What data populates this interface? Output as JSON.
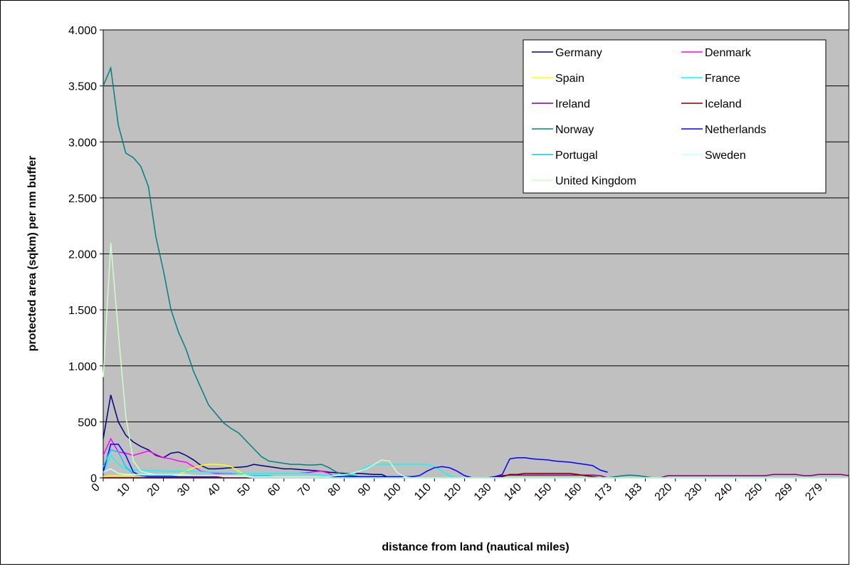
{
  "chart_data": {
    "type": "line",
    "x_label": "distance from land (nautical miles)",
    "y_label": "protected area (sqkm) per nm buffer",
    "categories": [
      "0",
      null,
      null,
      null,
      "10",
      null,
      null,
      null,
      "20",
      null,
      null,
      null,
      "30",
      null,
      null,
      null,
      "40",
      null,
      null,
      null,
      "50",
      null,
      null,
      null,
      "60",
      null,
      null,
      null,
      "70",
      null,
      null,
      null,
      "80",
      null,
      null,
      null,
      "90",
      null,
      null,
      null,
      "100",
      null,
      null,
      null,
      "110",
      null,
      null,
      null,
      "120",
      null,
      null,
      null,
      "130",
      null,
      null,
      null,
      "140",
      null,
      null,
      null,
      "150",
      null,
      null,
      null,
      "160",
      null,
      null,
      null,
      "173",
      null,
      null,
      null,
      "183",
      null,
      null,
      null,
      "220",
      null,
      null,
      null,
      "230",
      null,
      null,
      null,
      "240",
      null,
      null,
      null,
      "250",
      null,
      null,
      null,
      "269",
      null,
      null,
      null,
      "279",
      null,
      null,
      null
    ],
    "ylim": [
      0,
      4000
    ],
    "yticks": [
      0,
      500,
      {
        "value": 1000,
        "label": "1.000"
      },
      {
        "value": 1500,
        "label": "1.500"
      },
      {
        "value": 2000,
        "label": "2.000"
      },
      {
        "value": 2500,
        "label": "2.500"
      },
      {
        "value": 3000,
        "label": "3.000"
      },
      {
        "value": 3500,
        "label": "3.500"
      },
      {
        "value": 4000,
        "label": "4.000"
      }
    ],
    "grid": true,
    "legend_position": "upper right",
    "series": [
      {
        "name": "Germany",
        "color": "#000080",
        "values": [
          350,
          740,
          500,
          380,
          320,
          280,
          250,
          200,
          180,
          220,
          230,
          200,
          160,
          110,
          80,
          80,
          85,
          90,
          95,
          100,
          120,
          110,
          100,
          90,
          80,
          80,
          75,
          70,
          65,
          60,
          50,
          45,
          40,
          40,
          40,
          35,
          30,
          30,
          0,
          0,
          0,
          0,
          0,
          0,
          0,
          0,
          0,
          0,
          0,
          0,
          0,
          0,
          0,
          0,
          0,
          0,
          0,
          0,
          0,
          0,
          0,
          0,
          0,
          0,
          0,
          0,
          0,
          0,
          0,
          0,
          0,
          0,
          0,
          0,
          0,
          0,
          0,
          0,
          0,
          0,
          0,
          0,
          0,
          0,
          0,
          0,
          0,
          0,
          0,
          0,
          0,
          0,
          0,
          0,
          0,
          0,
          0,
          0,
          0,
          0
        ]
      },
      {
        "name": "Denmark",
        "color": "#ff00ff",
        "values": [
          200,
          350,
          230,
          220,
          200,
          220,
          240,
          210,
          180,
          170,
          150,
          140,
          100,
          60,
          50,
          40,
          40,
          40,
          40,
          40,
          40,
          40,
          40,
          40,
          40,
          40,
          40,
          45,
          55,
          60,
          40,
          0,
          0,
          0,
          0,
          0,
          0,
          0,
          0,
          0,
          0,
          0,
          0,
          0,
          0,
          0,
          0,
          0,
          0,
          0,
          0,
          0,
          0,
          0,
          0,
          0,
          0,
          0,
          0,
          0,
          0,
          0,
          0,
          0,
          0,
          0,
          0,
          0,
          0,
          0,
          0,
          0,
          0,
          0,
          0,
          0,
          0,
          0,
          0,
          0,
          0,
          0,
          0,
          0,
          0,
          0,
          0,
          0,
          0,
          0,
          0,
          0,
          0,
          0,
          0,
          0,
          0,
          0,
          0,
          0
        ]
      },
      {
        "name": "Spain",
        "color": "#ffff00",
        "values": [
          10,
          20,
          20,
          20,
          20,
          20,
          20,
          20,
          20,
          20,
          30,
          60,
          90,
          110,
          120,
          120,
          115,
          100,
          60,
          20,
          0,
          0,
          0,
          0,
          0,
          0,
          0,
          0,
          0,
          0,
          0,
          0,
          0,
          0,
          0,
          0,
          0,
          0,
          0,
          0,
          0,
          0,
          0,
          0,
          0,
          0,
          0,
          0,
          0,
          0,
          0,
          0,
          0,
          0,
          0,
          0,
          0,
          0,
          0,
          0,
          0,
          0,
          0,
          0,
          0,
          0,
          0,
          0,
          0,
          0,
          0,
          0,
          0,
          0,
          0,
          0,
          0,
          0,
          0,
          0,
          0,
          0,
          0,
          0,
          0,
          0,
          0,
          0,
          0,
          0,
          0,
          0,
          0,
          0,
          0,
          0,
          0,
          0,
          0,
          0
        ]
      },
      {
        "name": "France",
        "color": "#00ffff",
        "values": [
          50,
          200,
          120,
          80,
          70,
          70,
          65,
          65,
          60,
          60,
          60,
          60,
          60,
          55,
          50,
          50,
          45,
          45,
          40,
          40,
          40,
          40,
          40,
          40,
          40,
          40,
          40,
          40,
          30,
          20,
          20,
          20,
          20,
          30,
          60,
          100,
          120,
          120,
          120,
          120,
          120,
          120,
          120,
          120,
          100,
          60,
          20,
          0,
          0,
          0,
          0,
          0,
          0,
          0,
          0,
          0,
          0,
          0,
          0,
          0,
          0,
          0,
          0,
          0,
          0,
          0,
          0,
          0,
          0,
          0,
          0,
          0,
          0,
          0,
          0,
          0,
          0,
          0,
          0,
          0,
          0,
          0,
          0,
          0,
          0,
          0,
          0,
          0,
          0,
          0,
          0,
          0,
          0,
          0,
          0,
          0,
          0,
          0,
          0,
          0
        ]
      },
      {
        "name": "Ireland",
        "color": "#800080",
        "values": [
          0,
          0,
          0,
          0,
          0,
          0,
          0,
          0,
          0,
          0,
          0,
          0,
          0,
          0,
          0,
          0,
          0,
          0,
          0,
          0,
          0,
          0,
          0,
          0,
          0,
          0,
          0,
          0,
          0,
          0,
          0,
          0,
          0,
          0,
          0,
          0,
          0,
          0,
          0,
          0,
          0,
          0,
          0,
          0,
          0,
          0,
          0,
          0,
          0,
          0,
          0,
          0,
          0,
          20,
          25,
          25,
          25,
          25,
          25,
          25,
          25,
          25,
          25,
          25,
          25,
          25,
          20,
          0,
          0,
          0,
          0,
          0,
          0,
          0,
          0,
          20,
          20,
          20,
          20,
          20,
          20,
          20,
          20,
          20,
          20,
          20,
          20,
          20,
          20,
          30,
          30,
          30,
          30,
          20,
          20,
          30,
          30,
          30,
          30,
          20
        ]
      },
      {
        "name": "Iceland",
        "color": "#800000",
        "values": [
          0,
          0,
          0,
          0,
          0,
          0,
          0,
          0,
          0,
          0,
          0,
          0,
          0,
          0,
          0,
          0,
          0,
          0,
          0,
          0,
          0,
          0,
          0,
          0,
          0,
          0,
          0,
          0,
          0,
          0,
          0,
          0,
          0,
          0,
          0,
          0,
          0,
          0,
          0,
          0,
          0,
          0,
          0,
          0,
          0,
          0,
          0,
          0,
          0,
          0,
          0,
          0,
          0,
          10,
          30,
          30,
          40,
          40,
          40,
          40,
          40,
          40,
          40,
          30,
          20,
          10,
          0,
          0,
          0,
          0,
          0,
          0,
          0,
          0,
          0,
          0,
          0,
          0,
          0,
          0,
          0,
          0,
          0,
          0,
          0,
          0,
          0,
          0,
          0,
          0,
          0,
          0,
          0,
          0,
          0,
          0,
          0,
          0,
          0,
          0
        ]
      },
      {
        "name": "Norway",
        "color": "#008080",
        "values": [
          3500,
          3660,
          3150,
          2900,
          2860,
          2780,
          2600,
          2150,
          1850,
          1500,
          1300,
          1150,
          950,
          800,
          650,
          570,
          490,
          440,
          400,
          330,
          260,
          190,
          150,
          140,
          130,
          120,
          120,
          115,
          115,
          120,
          90,
          50,
          30,
          20,
          10,
          0,
          0,
          0,
          0,
          0,
          0,
          0,
          0,
          0,
          0,
          0,
          0,
          0,
          0,
          0,
          0,
          0,
          0,
          0,
          0,
          0,
          0,
          0,
          0,
          0,
          0,
          0,
          0,
          0,
          0,
          0,
          0,
          0,
          10,
          20,
          25,
          20,
          10,
          0,
          0,
          0,
          0,
          0,
          0,
          0,
          0,
          0,
          0,
          0,
          0,
          0,
          0,
          0,
          0,
          0,
          0,
          0,
          0,
          0,
          0,
          0,
          0,
          0,
          0,
          0
        ]
      },
      {
        "name": "Netherlands",
        "color": "#0000ff",
        "values": [
          50,
          300,
          300,
          200,
          50,
          20,
          10,
          10,
          10,
          10,
          10,
          10,
          10,
          10,
          10,
          10,
          10,
          10,
          10,
          10,
          10,
          10,
          10,
          10,
          10,
          10,
          10,
          10,
          10,
          10,
          10,
          10,
          10,
          10,
          10,
          10,
          10,
          10,
          10,
          10,
          10,
          10,
          20,
          60,
          90,
          100,
          90,
          60,
          20,
          0,
          0,
          0,
          10,
          30,
          170,
          180,
          180,
          170,
          165,
          160,
          150,
          145,
          140,
          130,
          120,
          110,
          70,
          50,
          null,
          null,
          null,
          null,
          null,
          null,
          null,
          null,
          null,
          null,
          null,
          null,
          null,
          null,
          null,
          null,
          null,
          null,
          null,
          null,
          null,
          null,
          null,
          null,
          null,
          null,
          null,
          null,
          null,
          null,
          null,
          null
        ]
      },
      {
        "name": "Portugal",
        "color": "#00ccff",
        "values": [
          100,
          250,
          230,
          100,
          30,
          20,
          20,
          20,
          20,
          20,
          20,
          20,
          20,
          20,
          20,
          20,
          20,
          20,
          20,
          20,
          20,
          20,
          20,
          10,
          10,
          10,
          10,
          10,
          10,
          10,
          0,
          0,
          0,
          0,
          0,
          0,
          0,
          0,
          0,
          0,
          0,
          0,
          0,
          0,
          0,
          0,
          0,
          0,
          0,
          0,
          0,
          0,
          0,
          0,
          0,
          0,
          0,
          0,
          0,
          0,
          0,
          0,
          0,
          0,
          0,
          0,
          0,
          0,
          0,
          0,
          0,
          0,
          0,
          0,
          0,
          0,
          0,
          0,
          0,
          0,
          0,
          0,
          0,
          0,
          0,
          0,
          0,
          0,
          0,
          0,
          0,
          0,
          0,
          0,
          0,
          0,
          0,
          0,
          0,
          0
        ]
      },
      {
        "name": "Sweden",
        "color": "#ccffff",
        "values": [
          50,
          80,
          40,
          30,
          30,
          30,
          30,
          30,
          30,
          30,
          20,
          20,
          20,
          20,
          20,
          20,
          10,
          10,
          10,
          10,
          0,
          0,
          0,
          0,
          0,
          0,
          0,
          0,
          0,
          0,
          0,
          0,
          0,
          0,
          0,
          0,
          0,
          0,
          0,
          0,
          0,
          0,
          0,
          0,
          0,
          0,
          0,
          0,
          0,
          0,
          0,
          0,
          0,
          0,
          0,
          0,
          0,
          0,
          0,
          0,
          0,
          0,
          0,
          0,
          0,
          0,
          0,
          0,
          0,
          0,
          0,
          0,
          0,
          0,
          0,
          0,
          0,
          0,
          0,
          0,
          0,
          0,
          0,
          0,
          0,
          0,
          0,
          0,
          0,
          0,
          0,
          0,
          0,
          0,
          0,
          0,
          0,
          0,
          0,
          0
        ]
      },
      {
        "name": "United Kingdom",
        "color": "#ccffcc",
        "values": [
          900,
          2100,
          1300,
          550,
          150,
          60,
          40,
          30,
          30,
          30,
          30,
          30,
          20,
          20,
          20,
          20,
          20,
          20,
          20,
          20,
          10,
          10,
          10,
          10,
          10,
          10,
          10,
          10,
          10,
          10,
          10,
          20,
          30,
          40,
          60,
          80,
          120,
          160,
          150,
          50,
          10,
          0,
          0,
          0,
          0,
          0,
          0,
          0,
          0,
          0,
          0,
          0,
          0,
          0,
          0,
          0,
          0,
          0,
          0,
          0,
          0,
          0,
          0,
          0,
          0,
          0,
          0,
          0,
          0,
          0,
          0,
          0,
          0,
          0,
          0,
          0,
          0,
          0,
          0,
          0,
          0,
          0,
          0,
          0,
          0,
          0,
          0,
          0,
          0,
          0,
          0,
          0,
          0,
          0,
          0,
          0,
          0,
          0,
          0,
          0
        ]
      }
    ]
  }
}
